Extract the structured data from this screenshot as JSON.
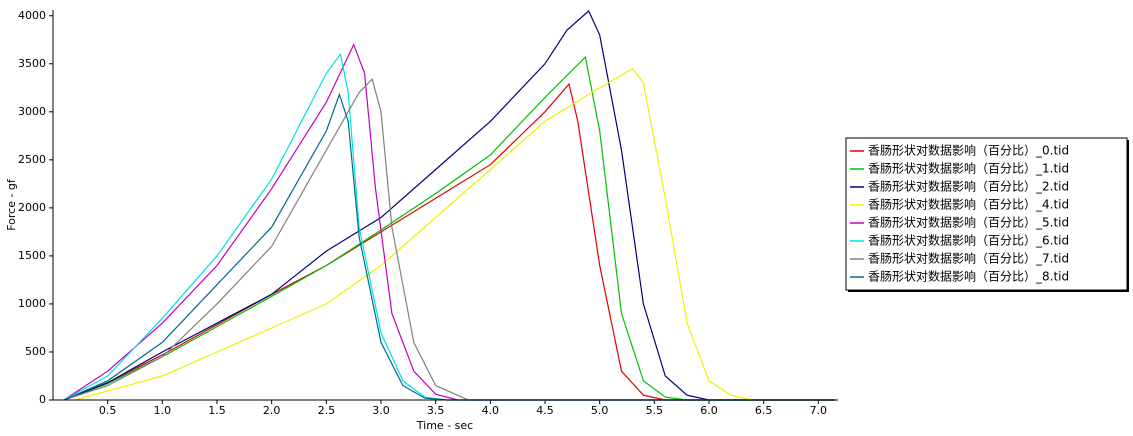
{
  "chart_data": {
    "type": "line",
    "xlabel": "Time - sec",
    "ylabel": "Force - gf",
    "xlim": [
      0,
      7.18
    ],
    "ylim": [
      0,
      4060
    ],
    "xticks": [
      {
        "value": 0.5,
        "label": "0.5"
      },
      {
        "value": 1,
        "label": "1.0"
      },
      {
        "value": 1.5,
        "label": "1.5"
      },
      {
        "value": 2,
        "label": "2.0"
      },
      {
        "value": 2.5,
        "label": "2.5"
      },
      {
        "value": 3,
        "label": "3.0"
      },
      {
        "value": 3.5,
        "label": "3.5"
      },
      {
        "value": 4,
        "label": "4.0"
      },
      {
        "value": 4.5,
        "label": "4.5"
      },
      {
        "value": 5,
        "label": "5.0"
      },
      {
        "value": 5.5,
        "label": "5.5"
      },
      {
        "value": 6,
        "label": "6.0"
      },
      {
        "value": 6.5,
        "label": "6.5"
      },
      {
        "value": 7,
        "label": "7.0"
      }
    ],
    "yticks": [
      0,
      500,
      1000,
      1500,
      2000,
      2500,
      3000,
      3500,
      4000
    ],
    "legend": "right",
    "series": [
      {
        "name": "香肠形状对数据影响（百分比）_0.tid",
        "color": "#e00000",
        "x": [
          0.1,
          0.5,
          1.05,
          2.0,
          2.5,
          3.0,
          3.5,
          4.0,
          4.5,
          4.72,
          4.8,
          5.0,
          5.2,
          5.4,
          5.6,
          7.15
        ],
        "values": [
          0,
          180,
          500,
          1100,
          1400,
          1750,
          2100,
          2450,
          3000,
          3290,
          2900,
          1400,
          300,
          50,
          0,
          0
        ]
      },
      {
        "name": "香肠形状对数据影响（百分比）_1.tid",
        "color": "#00c000",
        "x": [
          0.1,
          0.5,
          1.05,
          2.0,
          2.5,
          3.0,
          3.5,
          4.0,
          4.5,
          4.87,
          5.0,
          5.2,
          5.4,
          5.6,
          5.8,
          7.15
        ],
        "values": [
          0,
          170,
          480,
          1080,
          1400,
          1770,
          2150,
          2550,
          3150,
          3570,
          2800,
          900,
          200,
          30,
          0,
          0
        ]
      },
      {
        "name": "香肠形状对数据影响（百分比）_2.tid",
        "color": "#000080",
        "x": [
          0.1,
          0.5,
          1.0,
          2.0,
          2.5,
          3.0,
          3.5,
          4.0,
          4.5,
          4.7,
          4.9,
          5.0,
          5.2,
          5.4,
          5.6,
          5.8,
          6.0,
          7.15
        ],
        "values": [
          0,
          180,
          500,
          1100,
          1550,
          1900,
          2400,
          2900,
          3500,
          3850,
          4050,
          3800,
          2600,
          1000,
          250,
          50,
          0,
          0
        ]
      },
      {
        "name": "香肠形状对数据影响（百分比）_4.tid",
        "color": "#f0f000",
        "x": [
          0.2,
          1.0,
          1.5,
          2.0,
          2.5,
          3.0,
          3.5,
          4.0,
          4.5,
          5.0,
          5.3,
          5.4,
          5.6,
          5.8,
          6.0,
          6.2,
          6.4,
          7.15
        ],
        "values": [
          0,
          250,
          500,
          750,
          1000,
          1400,
          1900,
          2400,
          2900,
          3250,
          3450,
          3300,
          2100,
          800,
          200,
          50,
          0,
          0
        ]
      },
      {
        "name": "香肠形状对数据影响（百分比）_5.tid",
        "color": "#c000c0",
        "x": [
          0.1,
          0.5,
          1.0,
          1.5,
          2.0,
          2.5,
          2.75,
          2.85,
          2.95,
          3.1,
          3.3,
          3.5,
          3.7,
          7.15
        ],
        "values": [
          0,
          300,
          800,
          1400,
          2200,
          3100,
          3700,
          3400,
          2200,
          900,
          300,
          60,
          0,
          0
        ]
      },
      {
        "name": "香肠形状对数据影响（百分比）_6.tid",
        "color": "#00e0e0",
        "x": [
          0.1,
          0.5,
          1.0,
          1.5,
          2.0,
          2.5,
          2.63,
          2.7,
          2.8,
          3.0,
          3.2,
          3.4,
          3.6,
          7.15
        ],
        "values": [
          0,
          250,
          850,
          1500,
          2300,
          3400,
          3600,
          3200,
          1800,
          700,
          200,
          30,
          0,
          0
        ]
      },
      {
        "name": "香肠形状对数据影响（百分比）_7.tid",
        "color": "#808080",
        "x": [
          0.1,
          0.5,
          1.0,
          1.5,
          2.0,
          2.5,
          2.8,
          2.92,
          3.0,
          3.1,
          3.3,
          3.5,
          3.8,
          7.15
        ],
        "values": [
          0,
          150,
          450,
          1000,
          1600,
          2600,
          3200,
          3340,
          3000,
          1800,
          600,
          150,
          0,
          0
        ]
      },
      {
        "name": "香肠形状对数据影响（百分比）_8.tid",
        "color": "#006a8a",
        "x": [
          0.1,
          0.5,
          1.0,
          1.5,
          2.0,
          2.5,
          2.62,
          2.7,
          2.8,
          3.0,
          3.2,
          3.4,
          3.6,
          7.15
        ],
        "values": [
          0,
          200,
          600,
          1200,
          1800,
          2800,
          3180,
          2900,
          1700,
          600,
          150,
          20,
          0,
          0
        ]
      }
    ]
  }
}
